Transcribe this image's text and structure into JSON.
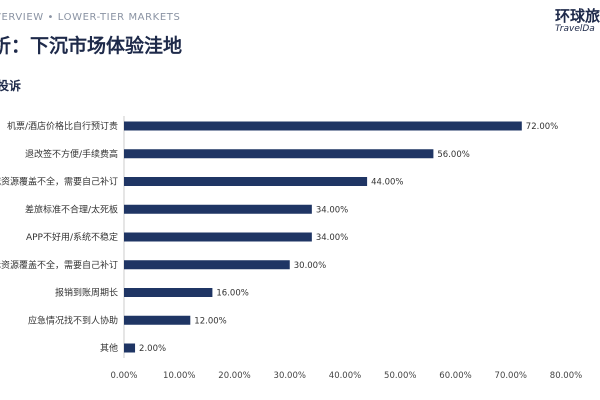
{
  "header": {
    "eyebrow": "VERVIEW • LOWER-TIER MARKETS",
    "title": "析：下沉市场体验洼地",
    "section_title": "投诉"
  },
  "logo": {
    "cn": "环球旅",
    "en": "TravelDa"
  },
  "colors": {
    "bar": "#1f3564",
    "title": "#1e2a4a"
  },
  "chart_data": {
    "type": "bar",
    "orientation": "horizontal",
    "categories": [
      "机票/酒店价格比自行预订贵",
      "退改签不方便/手续费高",
      "城资源覆盖不全，需要自己补订",
      "差旅标准不合理/太死板",
      "APP不好用/系统不稳定",
      "际资源覆盖不全，需要自己补订",
      "报销到账周期长",
      "应急情况找不到人协助",
      "其他"
    ],
    "values": [
      72.0,
      56.0,
      44.0,
      34.0,
      34.0,
      30.0,
      16.0,
      12.0,
      2.0
    ],
    "value_labels": [
      "72.00%",
      "56.00%",
      "44.00%",
      "34.00%",
      "34.00%",
      "30.00%",
      "16.00%",
      "12.00%",
      "2.00%"
    ],
    "x_ticks": [
      "0.00%",
      "10.00%",
      "20.00%",
      "30.00%",
      "40.00%",
      "50.00%",
      "60.00%",
      "70.00%",
      "80.00%"
    ],
    "xlim": [
      0,
      80
    ],
    "grid": false,
    "legend": "none"
  }
}
